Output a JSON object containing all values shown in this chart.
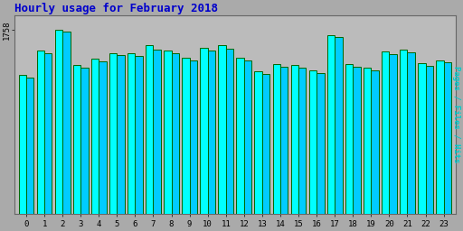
{
  "title": "Hourly usage for February 2018",
  "ylabel": "Pages / Files / Hits",
  "hours": [
    0,
    1,
    2,
    3,
    4,
    5,
    6,
    7,
    8,
    9,
    10,
    11,
    12,
    13,
    14,
    15,
    16,
    17,
    18,
    19,
    20,
    21,
    22,
    23
  ],
  "bars1": [
    1330,
    1560,
    1758,
    1420,
    1480,
    1540,
    1540,
    1610,
    1560,
    1490,
    1590,
    1610,
    1490,
    1360,
    1430,
    1420,
    1370,
    1710,
    1430,
    1400,
    1550,
    1570,
    1440,
    1470
  ],
  "bars2": [
    1300,
    1540,
    1740,
    1400,
    1455,
    1515,
    1510,
    1570,
    1540,
    1465,
    1565,
    1580,
    1465,
    1340,
    1405,
    1395,
    1345,
    1690,
    1405,
    1375,
    1525,
    1545,
    1415,
    1450
  ],
  "bar1_color": "#00ffff",
  "bar2_color": "#00ccff",
  "bar_edge": "#006600",
  "bg_color": "#aaaaaa",
  "plot_bg": "#bbbbbb",
  "title_color": "#0000cc",
  "ylabel_color": "#00cccc",
  "ymax": 1900,
  "ytick": 1758,
  "bar_width": 0.42,
  "figsize": [
    5.12,
    2.56
  ],
  "dpi": 100
}
